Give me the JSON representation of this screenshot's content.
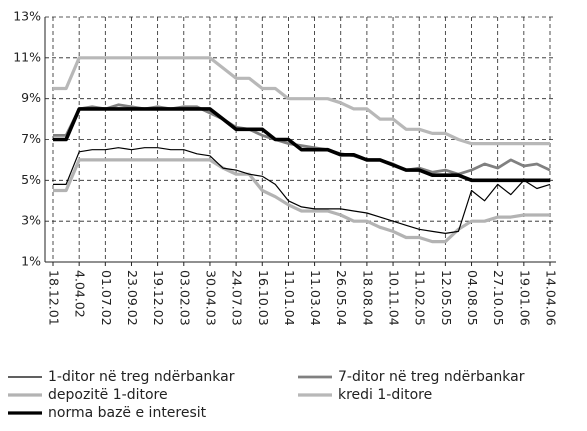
{
  "chart_data": {
    "type": "line",
    "categories": [
      "18.12.01",
      null,
      "4.04.02",
      null,
      "01.07.02",
      null,
      "23.09.02",
      null,
      "19.12.02",
      null,
      "03.02.03",
      null,
      "30.04.03",
      null,
      "24.07.03",
      null,
      "16.10.03",
      null,
      "11.01.04",
      null,
      "11.03.04",
      null,
      "26.05.04",
      null,
      "18.08.04",
      null,
      "10.11.04",
      null,
      "11.02.05",
      null,
      "12.05.05",
      null,
      "04.08.05",
      null,
      "27.10.05",
      null,
      "19.01.06",
      null,
      "14.04.06"
    ],
    "ylim": [
      1,
      13
    ],
    "yticks": [
      {
        "value": 1,
        "label": "1%"
      },
      {
        "value": 3,
        "label": "3%"
      },
      {
        "value": 5,
        "label": "5%"
      },
      {
        "value": 7,
        "label": "7%"
      },
      {
        "value": 9,
        "label": "9%"
      },
      {
        "value": 11,
        "label": "11%"
      },
      {
        "value": 13,
        "label": "13%"
      }
    ],
    "grid": true,
    "legend": "bottom",
    "series": [
      {
        "name": "1-ditor në treg ndërbankar",
        "color": "#000000",
        "values": [
          4.8,
          4.8,
          6.4,
          6.5,
          6.5,
          6.6,
          6.5,
          6.6,
          6.6,
          6.5,
          6.5,
          6.3,
          6.2,
          5.6,
          5.5,
          5.3,
          5.2,
          4.8,
          4.0,
          3.7,
          3.6,
          3.6,
          3.6,
          3.5,
          3.4,
          3.2,
          3.0,
          2.8,
          2.6,
          2.5,
          2.4,
          2.5,
          4.5,
          4.0,
          4.8,
          4.3,
          5.0,
          4.6,
          4.8
        ]
      },
      {
        "name": "7-ditor në treg ndërbankar",
        "color": "#808080",
        "values": [
          7.2,
          7.2,
          8.5,
          8.6,
          8.5,
          8.7,
          8.6,
          8.5,
          8.6,
          8.5,
          8.6,
          8.6,
          8.3,
          8.0,
          7.6,
          7.5,
          7.2,
          7.0,
          6.8,
          6.7,
          6.6,
          6.5,
          6.3,
          6.2,
          6.0,
          6.0,
          5.8,
          5.5,
          5.6,
          5.4,
          5.5,
          5.3,
          5.5,
          5.8,
          5.6,
          6.0,
          5.7,
          5.8,
          5.5
        ]
      },
      {
        "name": "depozitë 1-ditore",
        "color": "#b3b3b3",
        "values": [
          4.5,
          4.5,
          6.0,
          6.0,
          6.0,
          6.0,
          6.0,
          6.0,
          6.0,
          6.0,
          6.0,
          6.0,
          6.0,
          5.6,
          5.3,
          5.3,
          4.5,
          4.2,
          3.8,
          3.5,
          3.5,
          3.5,
          3.3,
          3.0,
          3.0,
          2.7,
          2.5,
          2.2,
          2.2,
          2.0,
          2.0,
          2.6,
          3.0,
          3.0,
          3.2,
          3.2,
          3.3,
          3.3,
          3.3
        ]
      },
      {
        "name": "kredi 1-ditore",
        "color": "#b8b8b8",
        "values": [
          9.5,
          9.5,
          11,
          11,
          11,
          11,
          11,
          11,
          11,
          11,
          11,
          11,
          11,
          10.5,
          10,
          10,
          9.5,
          9.5,
          9,
          9,
          9,
          9,
          8.8,
          8.5,
          8.5,
          8,
          8,
          7.5,
          7.5,
          7.3,
          7.3,
          7,
          6.8,
          6.8,
          6.8,
          6.8,
          6.8,
          6.8,
          6.8
        ]
      },
      {
        "name": "norma bazë e interesit",
        "color": "#000000",
        "values": [
          7,
          7,
          8.5,
          8.5,
          8.5,
          8.5,
          8.5,
          8.5,
          8.5,
          8.5,
          8.5,
          8.5,
          8.5,
          8,
          7.5,
          7.5,
          7.5,
          7,
          7,
          6.5,
          6.5,
          6.5,
          6.25,
          6.25,
          6,
          6,
          5.75,
          5.5,
          5.5,
          5.25,
          5.25,
          5.25,
          5,
          5,
          5,
          5,
          5,
          5,
          5
        ]
      }
    ]
  }
}
